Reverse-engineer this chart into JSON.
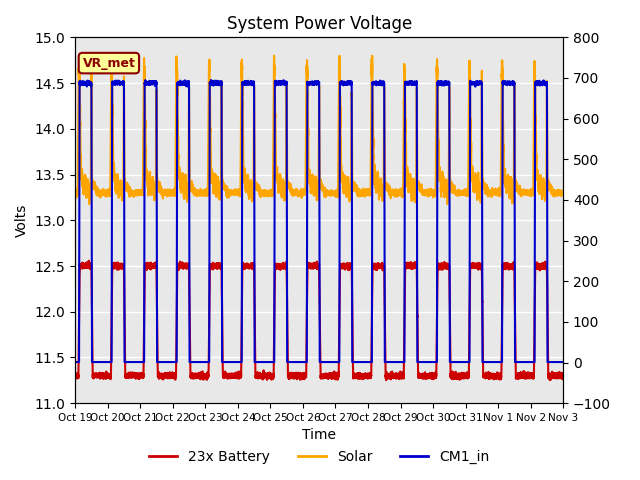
{
  "title": "System Power Voltage",
  "xlabel": "Time",
  "ylabel_left": "Volts",
  "ylim_left": [
    11.0,
    15.0
  ],
  "ylim_right": [
    -100,
    800
  ],
  "yticks_left": [
    11.0,
    11.5,
    12.0,
    12.5,
    13.0,
    13.5,
    14.0,
    14.5,
    15.0
  ],
  "yticks_right": [
    -100,
    0,
    100,
    200,
    300,
    400,
    500,
    600,
    700,
    800
  ],
  "xtick_labels": [
    "Oct 19",
    "Oct 20",
    "Oct 21",
    "Oct 22",
    "Oct 23",
    "Oct 24",
    "Oct 25",
    "Oct 26",
    "Oct 27",
    "Oct 28",
    "Oct 29",
    "Oct 30",
    "Oct 31",
    "Nov 1",
    "Nov 2",
    "Nov 3"
  ],
  "num_days": 15,
  "annotation_text": "VR_met",
  "annotation_color": "#8B0000",
  "legend_labels": [
    "23x Battery",
    "Solar",
    "CM1_in"
  ],
  "legend_colors": [
    "#CC0000",
    "#FFA500",
    "#0000CC"
  ],
  "background_color": "#E8E8E8",
  "grid_color": "#FFFFFF",
  "line_width": 1.5
}
